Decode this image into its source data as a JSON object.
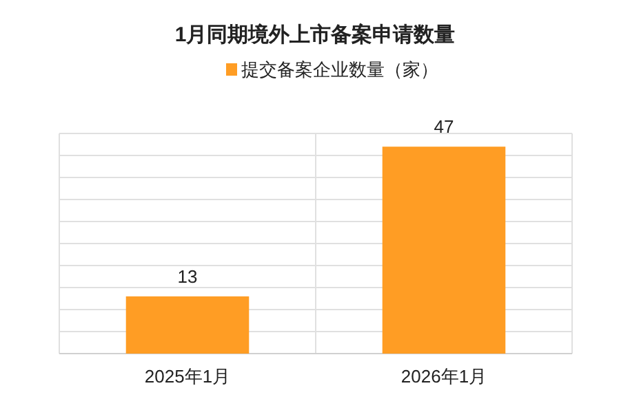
{
  "chart_data": {
    "type": "bar",
    "title": "1月同期境外上市备案申请数量",
    "categories": [
      "2025年1月",
      "2026年1月"
    ],
    "series": [
      {
        "name": "提交备案企业数量（家）",
        "color": "#ff9d24",
        "values": [
          13,
          47
        ]
      }
    ],
    "data_labels": true,
    "legend": "top",
    "grid": true,
    "tick_labels": "x",
    "ylim": [
      0,
      50
    ],
    "yticks": [
      {
        "value": 0,
        "label": null
      },
      {
        "value": 5,
        "label": null
      },
      {
        "value": 10,
        "label": null
      },
      {
        "value": 15,
        "label": null
      },
      {
        "value": 20,
        "label": null
      },
      {
        "value": 25,
        "label": null
      },
      {
        "value": 30,
        "label": null
      },
      {
        "value": 35,
        "label": null
      },
      {
        "value": 40,
        "label": null
      },
      {
        "value": 45,
        "label": null
      },
      {
        "value": 50,
        "label": null
      }
    ]
  }
}
